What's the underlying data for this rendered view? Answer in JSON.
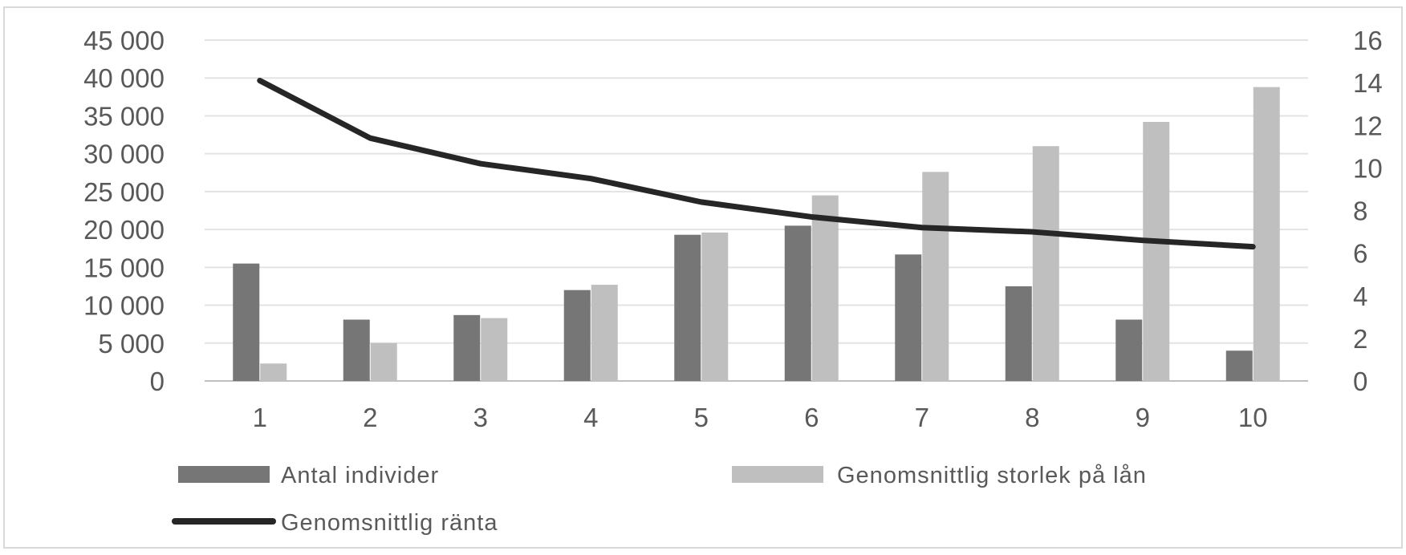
{
  "chart_data": {
    "type": "bar",
    "categories": [
      "1",
      "2",
      "3",
      "4",
      "5",
      "6",
      "7",
      "8",
      "9",
      "10"
    ],
    "series": [
      {
        "name": "Antal individer",
        "type": "bar",
        "axis": "left",
        "color": "#767676",
        "values": [
          15500,
          8100,
          8700,
          12000,
          19300,
          20500,
          16700,
          12500,
          8100,
          4000
        ]
      },
      {
        "name": "Genomsnittlig storlek på lån",
        "type": "bar",
        "axis": "left",
        "color": "#bfbfbf",
        "values": [
          2300,
          5000,
          8300,
          12700,
          19600,
          24500,
          27600,
          31000,
          34200,
          38800
        ]
      },
      {
        "name": "Genomsnittlig ränta",
        "type": "line",
        "axis": "right",
        "color": "#262626",
        "values": [
          14.1,
          11.4,
          10.2,
          9.5,
          8.4,
          7.7,
          7.2,
          7.0,
          6.6,
          6.3
        ]
      }
    ],
    "y_left": {
      "lim": [
        0,
        45000
      ],
      "ticks": [
        0,
        5000,
        10000,
        15000,
        20000,
        25000,
        30000,
        35000,
        40000,
        45000
      ],
      "tick_labels": [
        "0",
        "5 000",
        "10 000",
        "15 000",
        "20 000",
        "25 000",
        "30 000",
        "35 000",
        "40 000",
        "45 000"
      ]
    },
    "y_right": {
      "lim": [
        0,
        16
      ],
      "ticks": [
        0,
        2,
        4,
        6,
        8,
        10,
        12,
        14,
        16
      ],
      "tick_labels": [
        "0",
        "2",
        "4",
        "6",
        "8",
        "10",
        "12",
        "14",
        "16"
      ]
    },
    "grid": true,
    "legend_position": "bottom"
  }
}
